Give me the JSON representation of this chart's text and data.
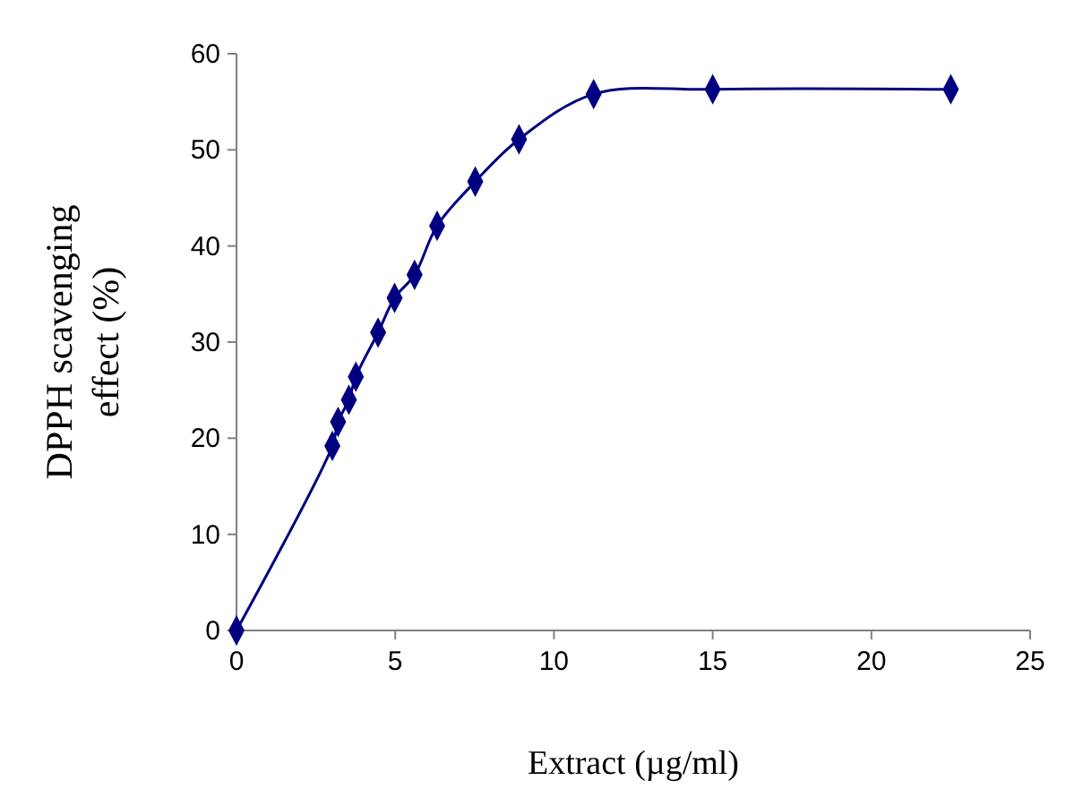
{
  "chart_data": {
    "type": "line",
    "xlabel": "Extract (µg/ml)",
    "ylabel": "DPPH scavenging effect (%)",
    "x": [
      0,
      3.02,
      3.2,
      3.54,
      3.76,
      4.46,
      4.98,
      5.61,
      6.32,
      7.52,
      8.9,
      11.25,
      15,
      22.5
    ],
    "series": [
      {
        "color": "#000080",
        "values": [
          0,
          19.2,
          21.7,
          24.0,
          26.4,
          31.0,
          34.6,
          37.0,
          42.1,
          46.7,
          51.1,
          55.8,
          56.3,
          56.3
        ]
      }
    ],
    "xlim": [
      0,
      25
    ],
    "xticks": [
      0,
      5,
      10,
      15,
      20,
      25
    ],
    "ylim": [
      0,
      60
    ],
    "yticks": [
      0,
      10,
      20,
      30,
      40,
      50,
      60
    ],
    "grid": false,
    "marker": "diamond",
    "line_style": "solid"
  }
}
